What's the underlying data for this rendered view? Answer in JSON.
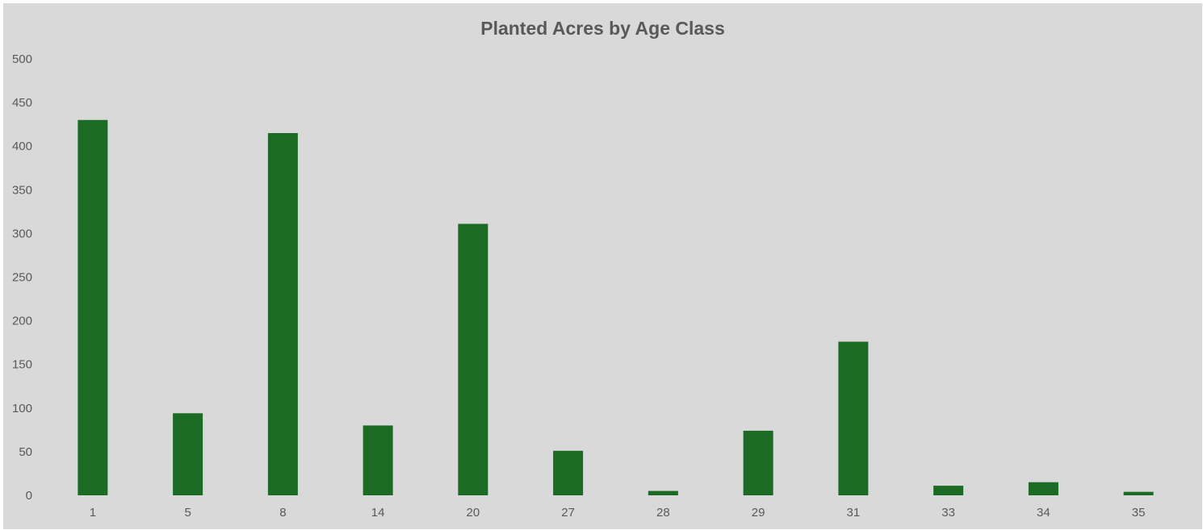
{
  "chart_data": {
    "type": "bar",
    "title": "Planted Acres by Age Class",
    "xlabel": "",
    "ylabel": "",
    "categories": [
      "1",
      "5",
      "8",
      "14",
      "20",
      "27",
      "28",
      "29",
      "31",
      "33",
      "34",
      "35"
    ],
    "values": [
      430,
      94,
      415,
      80,
      311,
      51,
      5,
      74,
      176,
      11,
      15,
      4
    ],
    "ylim": [
      0,
      500
    ],
    "yticks": [
      "0",
      "50",
      "100",
      "150",
      "200",
      "250",
      "300",
      "350",
      "400",
      "450",
      "500"
    ],
    "grid": false,
    "legend": "none",
    "bar_color": "#1b6b25",
    "background_color": "#d9d9d9"
  }
}
